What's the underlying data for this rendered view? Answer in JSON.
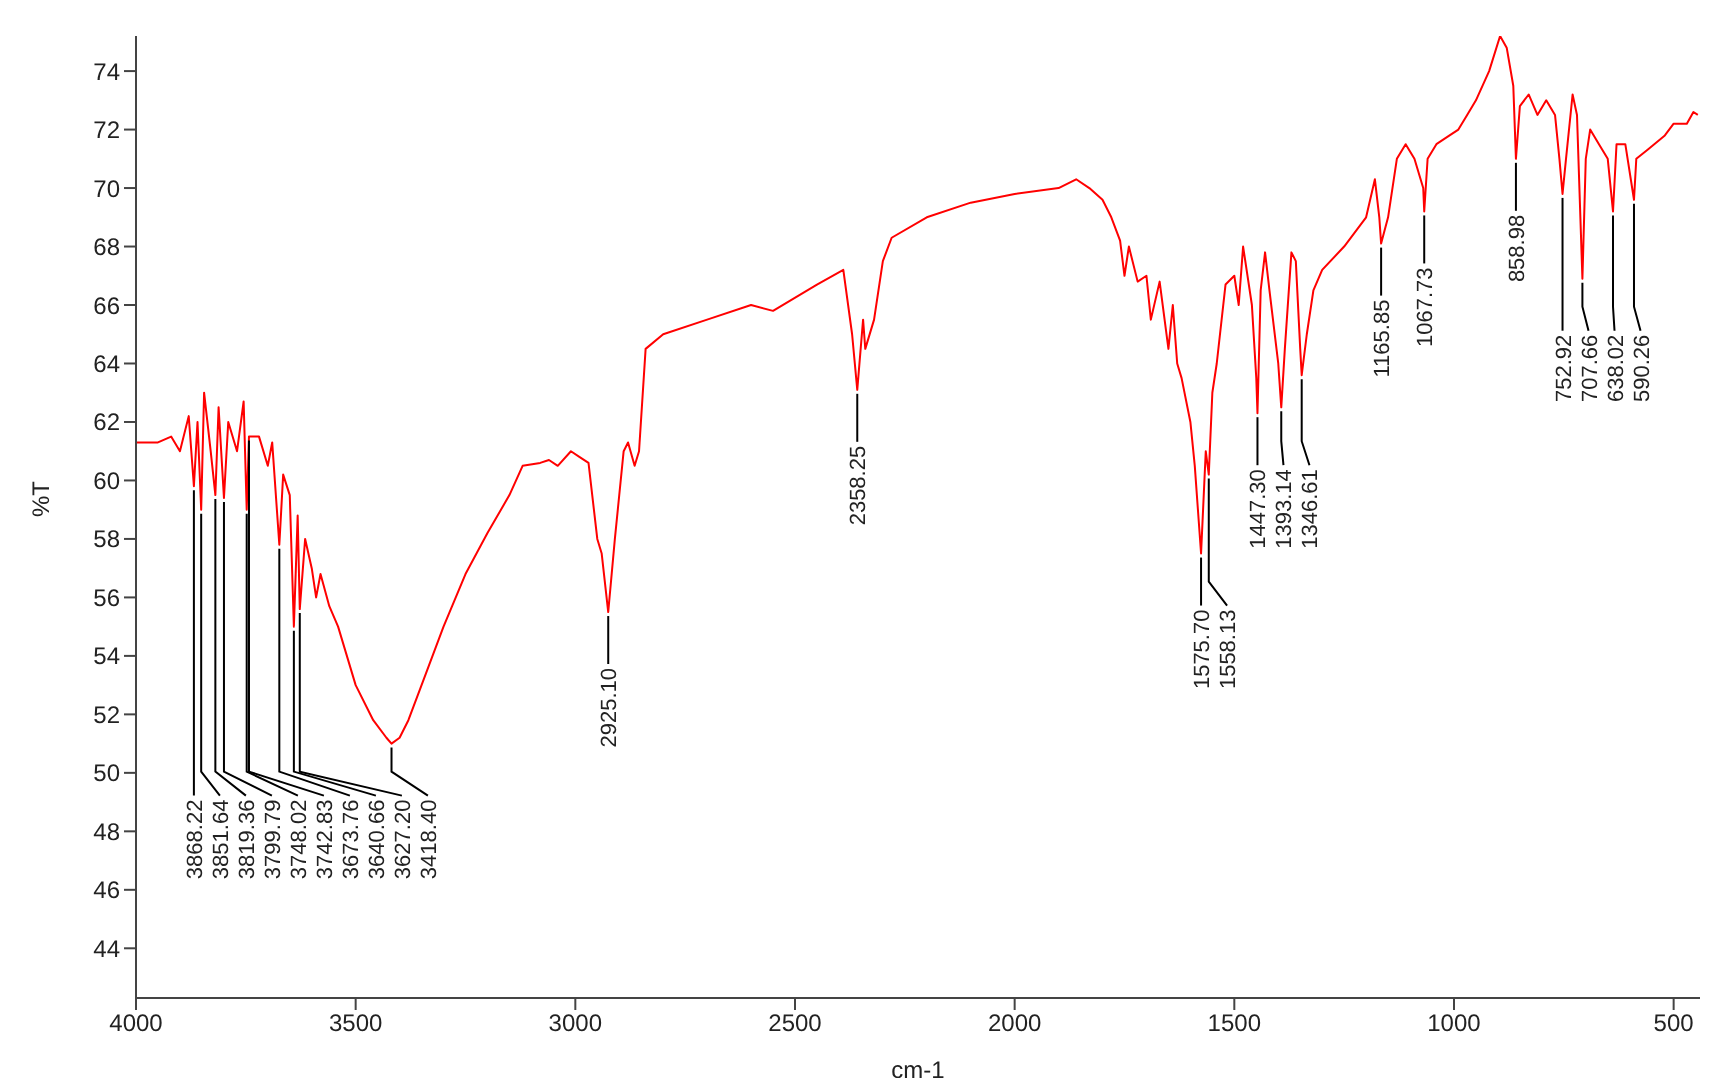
{
  "chart_data": {
    "type": "line",
    "xlabel": "cm-1",
    "ylabel": "%T",
    "xlim": [
      4000,
      440
    ],
    "ylim": [
      42.3,
      75.2
    ],
    "xticks": [
      4000,
      3500,
      3000,
      2500,
      2000,
      1500,
      1000,
      500
    ],
    "yticks": [
      44,
      46,
      48,
      50,
      52,
      54,
      56,
      58,
      60,
      62,
      64,
      66,
      68,
      70,
      72,
      74
    ],
    "grid": false,
    "legend": false,
    "marker": "none",
    "line_style": "solid",
    "series": [
      {
        "color": "#ff0000",
        "x": [
          4000,
          3950,
          3920,
          3900,
          3880,
          3868.22,
          3860,
          3851.64,
          3845,
          3830,
          3819.36,
          3812,
          3799.79,
          3790,
          3770,
          3755,
          3748.02,
          3742.83,
          3720,
          3700,
          3690,
          3673.76,
          3665,
          3650,
          3640.66,
          3632,
          3627.2,
          3615,
          3600,
          3590,
          3580,
          3560,
          3540,
          3500,
          3460,
          3430,
          3418.4,
          3400,
          3380,
          3350,
          3300,
          3250,
          3200,
          3150,
          3120,
          3080,
          3060,
          3040,
          3010,
          2990,
          2970,
          2950,
          2940,
          2925.1,
          2910,
          2890,
          2880,
          2865,
          2855,
          2840,
          2800,
          2700,
          2600,
          2550,
          2450,
          2390,
          2370,
          2358.25,
          2345,
          2340,
          2320,
          2300,
          2280,
          2200,
          2100,
          2000,
          1900,
          1860,
          1830,
          1800,
          1780,
          1760,
          1750,
          1740,
          1720,
          1700,
          1690,
          1670,
          1650,
          1640,
          1630,
          1620,
          1600,
          1590,
          1575.7,
          1565,
          1558.13,
          1550,
          1540,
          1520,
          1500,
          1490,
          1480,
          1460,
          1450,
          1447.3,
          1440,
          1430,
          1420,
          1400,
          1393.14,
          1385,
          1370,
          1360,
          1350,
          1346.61,
          1335,
          1320,
          1300,
          1250,
          1200,
          1180,
          1170,
          1165.85,
          1150,
          1130,
          1110,
          1090,
          1070,
          1067.73,
          1060,
          1040,
          1010,
          990,
          970,
          950,
          920,
          895,
          880,
          865,
          858.98,
          850,
          830,
          810,
          790,
          770,
          760,
          752.92,
          745,
          730,
          720,
          707.66,
          700,
          690,
          670,
          650,
          638.02,
          630,
          610,
          590.26,
          585,
          560,
          520,
          500,
          470,
          455,
          445
        ],
        "values": [
          61.3,
          61.3,
          61.5,
          61.0,
          62.2,
          59.8,
          62.0,
          59.0,
          63.0,
          61.0,
          59.5,
          62.5,
          59.4,
          62.0,
          61.0,
          62.7,
          59.0,
          61.5,
          61.5,
          60.5,
          61.3,
          57.8,
          60.2,
          59.5,
          55.0,
          58.8,
          55.6,
          58.0,
          57.0,
          56.0,
          56.8,
          55.7,
          55.0,
          53.0,
          51.8,
          51.2,
          51.0,
          51.2,
          51.8,
          53.0,
          55.0,
          56.8,
          58.2,
          59.5,
          60.5,
          60.6,
          60.7,
          60.5,
          61.0,
          60.8,
          60.6,
          58.0,
          57.5,
          55.5,
          58.0,
          61.0,
          61.3,
          60.5,
          61.0,
          64.5,
          65.0,
          65.5,
          66.0,
          65.8,
          66.7,
          67.2,
          65.0,
          63.1,
          65.5,
          64.5,
          65.5,
          67.5,
          68.3,
          69.0,
          69.5,
          69.8,
          70.0,
          70.3,
          70.0,
          69.6,
          69.0,
          68.2,
          67.0,
          68.0,
          66.8,
          67.0,
          65.5,
          66.8,
          64.5,
          66.0,
          64.0,
          63.5,
          62.0,
          60.5,
          57.5,
          61.0,
          60.2,
          63.0,
          64.0,
          66.7,
          67.0,
          66.0,
          68.0,
          66.0,
          63.5,
          62.3,
          66.5,
          67.8,
          66.5,
          64.0,
          62.5,
          64.5,
          67.8,
          67.5,
          64.5,
          63.6,
          65.0,
          66.5,
          67.2,
          68.0,
          69.0,
          70.3,
          69.0,
          68.1,
          69.0,
          71.0,
          71.5,
          71.0,
          70.0,
          69.2,
          71.0,
          71.5,
          71.8,
          72.0,
          72.5,
          73.0,
          74.0,
          75.2,
          74.8,
          73.5,
          71.0,
          72.8,
          73.2,
          72.5,
          73.0,
          72.5,
          71.0,
          69.8,
          71.0,
          73.2,
          72.5,
          66.9,
          71.0,
          72.0,
          71.5,
          71.0,
          69.2,
          71.5,
          71.5,
          69.6,
          71.0,
          71.3,
          71.8,
          72.2,
          72.2,
          72.6,
          72.5
        ]
      }
    ],
    "annotations": [
      {
        "text": "3868.22",
        "x": 3868.22,
        "y": 59.8
      },
      {
        "text": "3851.64",
        "x": 3851.64,
        "y": 59.0
      },
      {
        "text": "3819.36",
        "x": 3819.36,
        "y": 59.5
      },
      {
        "text": "3799.79",
        "x": 3799.79,
        "y": 59.4
      },
      {
        "text": "3748.02",
        "x": 3748.02,
        "y": 59.0
      },
      {
        "text": "3742.83",
        "x": 3742.83,
        "y": 61.5
      },
      {
        "text": "3673.76",
        "x": 3673.76,
        "y": 57.8
      },
      {
        "text": "3640.66",
        "x": 3640.66,
        "y": 55.0
      },
      {
        "text": "3627.20",
        "x": 3627.2,
        "y": 55.6
      },
      {
        "text": "3418.40",
        "x": 3418.4,
        "y": 51.0
      },
      {
        "text": "2925.10",
        "x": 2925.1,
        "y": 55.5
      },
      {
        "text": "2358.25",
        "x": 2358.25,
        "y": 63.1
      },
      {
        "text": "1575.70",
        "x": 1575.7,
        "y": 57.5
      },
      {
        "text": "1558.13",
        "x": 1558.13,
        "y": 60.2
      },
      {
        "text": "1447.30",
        "x": 1447.3,
        "y": 62.3
      },
      {
        "text": "1393.14",
        "x": 1393.14,
        "y": 62.5
      },
      {
        "text": "1346.61",
        "x": 1346.61,
        "y": 63.6
      },
      {
        "text": "1165.85",
        "x": 1165.85,
        "y": 68.1
      },
      {
        "text": "1067.73",
        "x": 1067.73,
        "y": 69.2
      },
      {
        "text": "858.98",
        "x": 858.98,
        "y": 71.0
      },
      {
        "text": "752.92",
        "x": 752.92,
        "y": 69.8
      },
      {
        "text": "707.66",
        "x": 707.66,
        "y": 66.9
      },
      {
        "text": "638.02",
        "x": 638.02,
        "y": 69.2
      },
      {
        "text": "590.26",
        "x": 590.26,
        "y": 69.6
      }
    ]
  }
}
